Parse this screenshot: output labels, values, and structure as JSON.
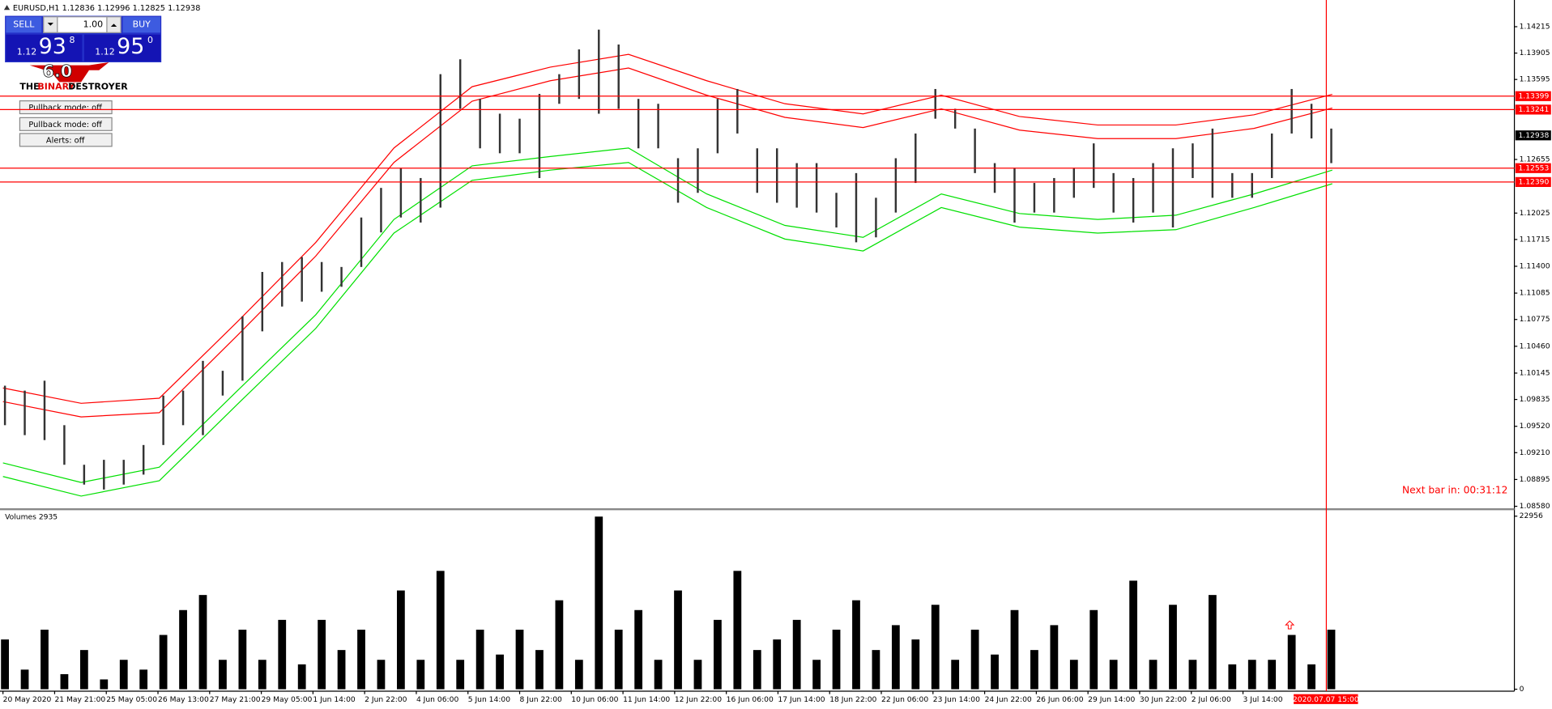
{
  "window": {
    "header": "EURUSD,H1  1.12836 1.12996 1.12825 1.12938",
    "trade_panel": {
      "sell": "SELL",
      "buy": "BUY",
      "lot": "1.00",
      "bid": {
        "big": "1.12",
        "main": "93",
        "frac": "8"
      },
      "ask": {
        "big": "1.12",
        "main": "95",
        "frac": "0"
      }
    },
    "logo": {
      "version": "6.0",
      "the": "THE",
      "binary": "BINARY",
      "destroyer": "DESTROYER"
    },
    "buttons": [
      "Pullback mode: off",
      "Pullback mode: off",
      "Alerts: off"
    ]
  },
  "chart_data": {
    "type": "ohlc",
    "ylim": [
      1.0858,
      1.14215
    ],
    "yticks": [
      1.14215,
      1.13905,
      1.13595,
      1.12655,
      1.12025,
      1.11715,
      {
        "value": 1.114,
        "label": "1.11400"
      },
      1.11085,
      1.10775,
      {
        "value": 1.1046,
        "label": "1.10460"
      },
      1.10145,
      1.09835,
      {
        "value": 1.0952,
        "label": "1.09520"
      },
      {
        "value": 1.0921,
        "label": "1.09210"
      },
      1.08895,
      {
        "value": 1.0858,
        "label": "1.08580"
      }
    ],
    "x_labels": [
      "20 May 2020",
      "21 May 21:00",
      "25 May 05:00",
      "26 May 13:00",
      "27 May 21:00",
      "29 May 05:00",
      "1 Jun 14:00",
      "2 Jun 22:00",
      "4 Jun 06:00",
      "5 Jun 14:00",
      "8 Jun 22:00",
      "10 Jun 06:00",
      "11 Jun 14:00",
      "12 Jun 22:00",
      "16 Jun 06:00",
      "17 Jun 14:00",
      "18 Jun 22:00",
      "22 Jun 06:00",
      "23 Jun 14:00",
      "24 Jun 22:00",
      "26 Jun 06:00",
      "29 Jun 14:00",
      "30 Jun 22:00",
      "2 Jul 06:00",
      "3 Jul 14:00"
    ],
    "cursor_label": "2020.07.07 15:00",
    "bar_color": "#333333",
    "high": [
      1.09997,
      1.09939,
      1.10055,
      1.09533,
      1.09068,
      1.09126,
      1.09126,
      1.093,
      1.09881,
      1.09939,
      1.10288,
      1.10172,
      1.10811,
      1.11334,
      1.1145,
      1.11508,
      1.1145,
      1.11392,
      1.11973,
      1.12321,
      1.12554,
      1.12437,
      1.13657,
      1.13832,
      1.13367,
      1.13193,
      1.13134,
      1.13425,
      1.13657,
      1.13948,
      1.1418,
      1.14006,
      1.13367,
      1.13309,
      1.1267,
      1.12786,
      1.13367,
      1.13483,
      1.12786,
      1.12786,
      1.12612,
      1.12612,
      1.12263,
      1.12495,
      1.12205,
      1.1267,
      1.1296,
      1.13483,
      1.13251,
      1.13018,
      1.12612,
      1.12554,
      1.12379,
      1.12437,
      1.12554,
      1.12844,
      1.12495,
      1.12437,
      1.12612,
      1.12786,
      1.12844,
      1.13018,
      1.12495,
      1.12495,
      1.1296,
      1.13483,
      1.13309,
      1.13018
    ],
    "low": [
      1.09533,
      1.09416,
      1.09358,
      1.09068,
      1.08835,
      1.08777,
      1.08835,
      1.08952,
      1.093,
      1.09533,
      1.09416,
      1.09881,
      1.10055,
      1.10636,
      1.10927,
      1.10985,
      1.11101,
      1.11159,
      1.11392,
      1.11798,
      1.11973,
      1.11914,
      1.12089,
      1.13251,
      1.12786,
      1.12728,
      1.12728,
      1.12437,
      1.13309,
      1.13367,
      1.13193,
      1.13251,
      1.12786,
      1.12786,
      1.12147,
      1.12263,
      1.12728,
      1.1296,
      1.12263,
      1.12147,
      1.12089,
      1.12031,
      1.11856,
      1.11682,
      1.1174,
      1.12031,
      1.12379,
      1.13134,
      1.13018,
      1.12495,
      1.12263,
      1.11914,
      1.12031,
      1.12031,
      1.12205,
      1.12321,
      1.12031,
      1.11914,
      1.12031,
      1.11856,
      1.12437,
      1.12205,
      1.12205,
      1.12205,
      1.12437,
      1.1296,
      1.12902,
      1.12612
    ],
    "bands": [
      {
        "color": "#ff0000",
        "values": [
          1.0997,
          1.0979,
          1.0985,
          1.1075,
          1.1168,
          1.1279,
          1.1351,
          1.1374,
          1.1389,
          1.1358,
          1.1331,
          1.1319,
          1.1341,
          1.1316,
          1.1306,
          1.1306,
          1.1318,
          1.1342
        ]
      },
      {
        "color": "#ff0000",
        "values": [
          1.0981,
          1.0963,
          1.0968,
          1.1059,
          1.1152,
          1.1262,
          1.1334,
          1.1358,
          1.1373,
          1.1341,
          1.1315,
          1.1303,
          1.1325,
          1.13,
          1.129,
          1.129,
          1.1302,
          1.1326
        ]
      },
      {
        "color": "#00e000",
        "values": [
          1.0909,
          1.0886,
          1.0904,
          1.0994,
          1.1083,
          1.1195,
          1.1258,
          1.1269,
          1.1279,
          1.1225,
          1.1188,
          1.1174,
          1.1225,
          1.1202,
          1.1195,
          1.12,
          1.1225,
          1.1253
        ]
      },
      {
        "color": "#00e000",
        "values": [
          1.0893,
          1.087,
          1.0888,
          1.0978,
          1.1067,
          1.1179,
          1.1241,
          1.1253,
          1.1262,
          1.1209,
          1.1172,
          1.1158,
          1.1209,
          1.1186,
          1.1179,
          1.1183,
          1.1209,
          1.1237
        ]
      }
    ],
    "hlines": {
      "color": "#ff0000",
      "values": [
        1.13399,
        1.13241,
        1.12553,
        {
          "value": 1.1239,
          "label": "1.12390"
        }
      ]
    },
    "current_price": 1.12938,
    "next_bar": "Next bar in: 00:31:12",
    "volume": {
      "title": "Volumes 2935",
      "ylim": [
        0,
        22956
      ],
      "yticks": [
        22956,
        0
      ],
      "color": "#000000",
      "values": [
        6600,
        2600,
        7900,
        2000,
        5200,
        1300,
        3900,
        2600,
        7200,
        10500,
        12500,
        3900,
        7900,
        3900,
        9200,
        3300,
        9200,
        5200,
        7900,
        3900,
        13100,
        3900,
        15700,
        3900,
        7900,
        4600,
        7900,
        5200,
        11800,
        3900,
        22900,
        7900,
        10500,
        3900,
        13100,
        3900,
        9200,
        15700,
        5200,
        6600,
        9200,
        3900,
        7900,
        11800,
        5200,
        8500,
        6600,
        11200,
        3900,
        7900,
        4600,
        10500,
        5200,
        8500,
        3900,
        10500,
        3900,
        14400,
        3900,
        11200,
        3900,
        12500,
        3300,
        3900,
        3900,
        7200,
        3300,
        7900
      ]
    }
  }
}
